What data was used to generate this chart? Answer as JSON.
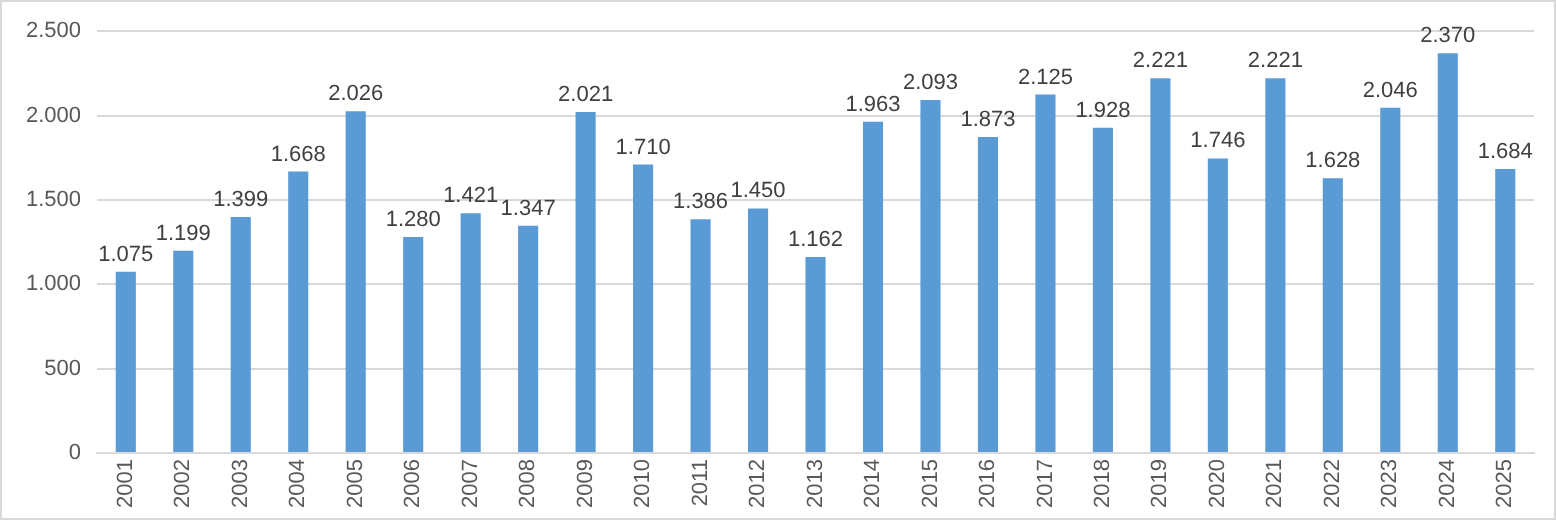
{
  "chart_data": {
    "type": "bar",
    "categories": [
      "2001",
      "2002",
      "2003",
      "2004",
      "2005",
      "2006",
      "2007",
      "2008",
      "2009",
      "2010",
      "2011",
      "2012",
      "2013",
      "2014",
      "2015",
      "2016",
      "2017",
      "2018",
      "2019",
      "2020",
      "2021",
      "2022",
      "2023",
      "2024",
      "2025"
    ],
    "values": [
      1075,
      1199,
      1399,
      1668,
      2026,
      1280,
      1421,
      1347,
      2021,
      1710,
      1386,
      1450,
      1162,
      1963,
      2093,
      1873,
      2125,
      1928,
      2221,
      1746,
      2221,
      1628,
      2046,
      2370,
      1684
    ],
    "value_labels": [
      "1.075",
      "1.199",
      "1.399",
      "1.668",
      "2.026",
      "1.280",
      "1.421",
      "1.347",
      "2.021",
      "1.710",
      "1.386",
      "1.450",
      "1.162",
      "1.963",
      "2.093",
      "1.873",
      "2.125",
      "1.928",
      "2.221",
      "1.746",
      "2.221",
      "1.628",
      "2.046",
      "2.370",
      "1.684"
    ],
    "color": "#5b9bd5",
    "ylim": [
      0,
      2500
    ],
    "yticks": [
      0,
      {
        "value": 500,
        "label": "500"
      },
      {
        "value": 1000,
        "label": "1.000"
      },
      {
        "value": 1500,
        "label": "1.500"
      },
      {
        "value": 2000,
        "label": "2.000"
      },
      {
        "value": 2500,
        "label": "2.500"
      }
    ],
    "grid": "y",
    "legend": false
  }
}
